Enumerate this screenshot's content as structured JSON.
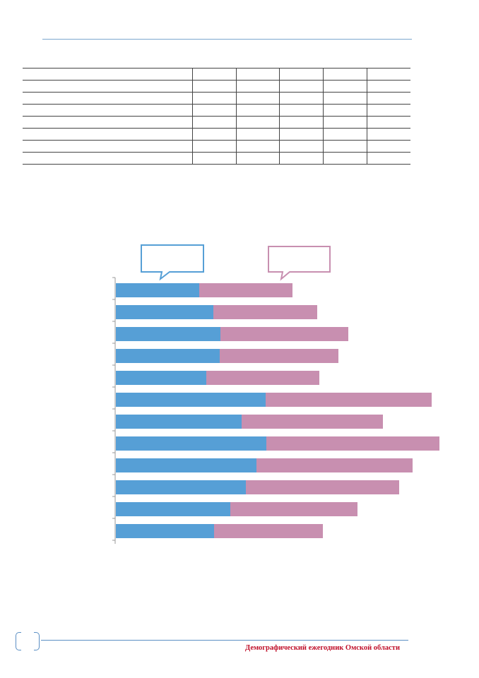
{
  "footer": {
    "title": "Демографический ежегодник Омской области",
    "page_number": ""
  },
  "table": {
    "columns": 6,
    "rows": [
      [
        "",
        "",
        "",
        "",
        "",
        ""
      ],
      [
        "",
        "",
        "",
        "",
        "",
        ""
      ],
      [
        "",
        "",
        "",
        "",
        "",
        ""
      ],
      [
        "",
        "",
        "",
        "",
        "",
        ""
      ],
      [
        "",
        "",
        "",
        "",
        "",
        ""
      ],
      [
        "",
        "",
        "",
        "",
        "",
        ""
      ],
      [
        "",
        "",
        "",
        "",
        "",
        ""
      ],
      [
        "",
        "",
        "",
        "",
        "",
        ""
      ]
    ]
  },
  "colors": {
    "series_1": "#569fd6",
    "series_2": "#c88fb0",
    "rule": "#5b8fc4",
    "footer_text": "#c0102a"
  },
  "chart_data": {
    "type": "bar",
    "orientation": "horizontal",
    "stacked": true,
    "title": "",
    "xlabel": "",
    "ylabel": "",
    "categories": [
      "",
      "",
      "",
      "",
      "",
      "",
      "",
      "",
      "",
      "",
      "",
      ""
    ],
    "series": [
      {
        "values": [
          118,
          138,
          148,
          147,
          128,
          212,
          178,
          213,
          199,
          184,
          162,
          139
        ]
      },
      {
        "values": [
          132,
          147,
          181,
          168,
          160,
          235,
          200,
          245,
          221,
          217,
          180,
          154
        ]
      }
    ],
    "legend": "top-callouts",
    "xlim": [
      0,
      470
    ],
    "grid": false
  }
}
